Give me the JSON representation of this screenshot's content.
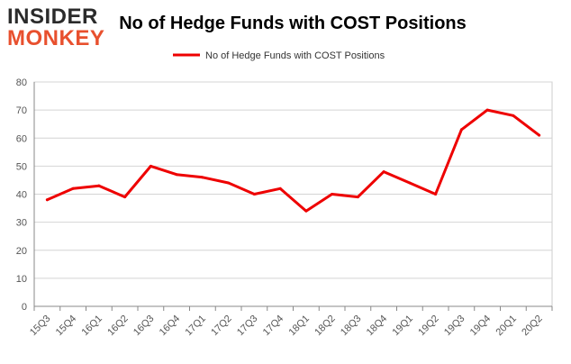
{
  "logo": {
    "line1": "INSIDER",
    "line2": "MONKEY"
  },
  "colors": {
    "series": "#ee0000",
    "grid": "#d4d4d4",
    "axis": "#888888",
    "logo_dark": "#2b2b2b",
    "logo_orange": "#e8502e"
  },
  "chart_data": {
    "type": "line",
    "title": "No of Hedge Funds with COST Positions",
    "xlabel": "",
    "ylabel": "",
    "categories": [
      "15Q3",
      "15Q4",
      "16Q1",
      "16Q2",
      "16Q3",
      "16Q4",
      "17Q1",
      "17Q2",
      "17Q3",
      "17Q4",
      "18Q1",
      "18Q2",
      "18Q3",
      "18Q4",
      "19Q1",
      "19Q2",
      "19Q3",
      "19Q4",
      "20Q1",
      "20Q2"
    ],
    "series": [
      {
        "name": "No of Hedge Funds with COST Positions",
        "values": [
          38,
          42,
          43,
          39,
          50,
          47,
          46,
          44,
          40,
          42,
          34,
          40,
          39,
          48,
          44,
          40,
          63,
          70,
          68,
          61
        ]
      }
    ],
    "ylim": [
      0,
      80
    ],
    "yticks": [
      0,
      10,
      20,
      30,
      40,
      50,
      60,
      70,
      80
    ],
    "grid": true,
    "legend_position": "top-center"
  }
}
